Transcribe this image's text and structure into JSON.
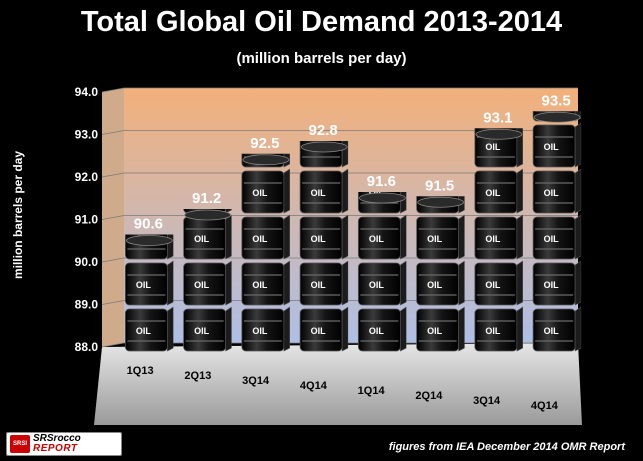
{
  "chart_data": {
    "type": "bar",
    "title": "Total Global Oil Demand 2013-2014",
    "subtitle": "(million barrels per day)",
    "ylabel": "million barrels per day",
    "xlabel": "",
    "categories": [
      "1Q13",
      "2Q13",
      "3Q14",
      "4Q14",
      "1Q14",
      "2Q14",
      "3Q14",
      "4Q14"
    ],
    "values": [
      90.6,
      91.2,
      92.5,
      92.8,
      91.6,
      91.5,
      93.1,
      93.5
    ],
    "data_labels": [
      "90.6",
      "91.2",
      "92.5",
      "92.8",
      "91.6",
      "91.5",
      "93.1",
      "93.5"
    ],
    "ylim": [
      88.0,
      94.0
    ],
    "yticks": [
      "88.0",
      "89.0",
      "90.0",
      "91.0",
      "92.0",
      "93.0",
      "94.0"
    ],
    "grid": true,
    "bar_style": "stacked oil barrels",
    "barrel_label": "OIL",
    "colors": {
      "background": "#000000",
      "wall_top": "#f2b07a",
      "wall_bottom": "#aebfe6",
      "floor": "#c9c9c9",
      "barrel": "#111111",
      "text": "#ffffff"
    }
  },
  "footer": {
    "logo_badge": "SRSI",
    "logo_line1": "SRSrocco",
    "logo_line2": "REPORT",
    "source": "figures from IEA December 2014 OMR Report"
  }
}
